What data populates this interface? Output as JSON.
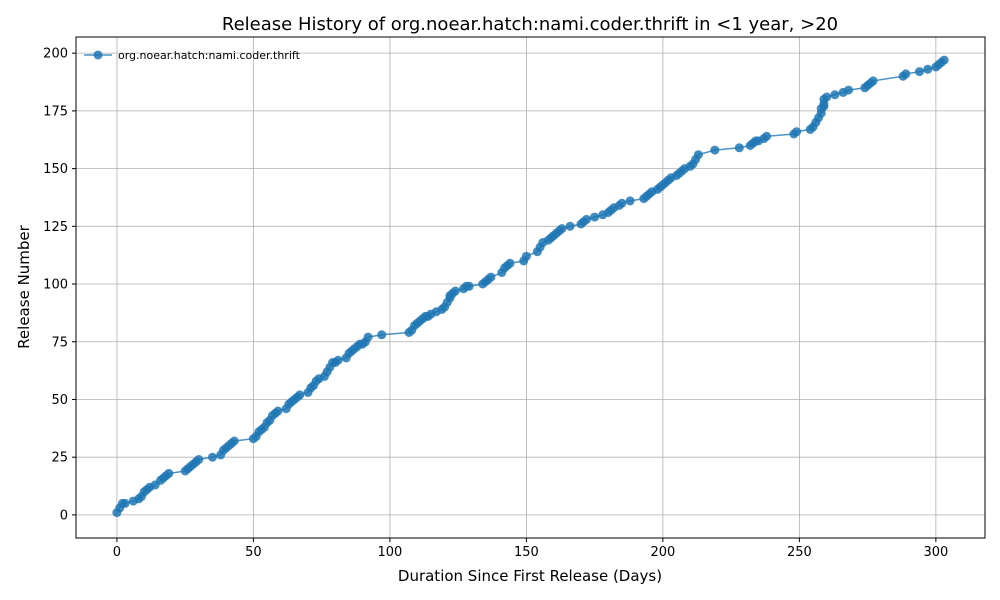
{
  "chart_data": {
    "type": "line",
    "title": "Release History of org.noear.hatch:nami.coder.thrift in <1 year, >20",
    "xlabel": "Duration Since First Release (Days)",
    "ylabel": "Release Number",
    "xlim": [
      -15,
      318
    ],
    "ylim": [
      -10,
      207
    ],
    "xticks": [
      0,
      50,
      100,
      150,
      200,
      250,
      300
    ],
    "yticks": [
      0,
      25,
      50,
      75,
      100,
      125,
      150,
      175,
      200
    ],
    "grid": true,
    "legend": "top-left",
    "series": [
      {
        "name": "org.noear.hatch:nami.coder.thrift",
        "color": "#1f77b4",
        "marker": "circle",
        "x": [
          0,
          1,
          2,
          3,
          6,
          8,
          9,
          10,
          11,
          12,
          14,
          16,
          17,
          18,
          19,
          25,
          26,
          27,
          28,
          29,
          30,
          35,
          38,
          39,
          40,
          41,
          42,
          43,
          50,
          51,
          52,
          53,
          54,
          55,
          56,
          57,
          58,
          59,
          62,
          63,
          64,
          65,
          66,
          67,
          70,
          71,
          72,
          73,
          74,
          76,
          77,
          78,
          79,
          80,
          81,
          84,
          85,
          86,
          87,
          88,
          89,
          90,
          91,
          92,
          97,
          107,
          108,
          109,
          110,
          111,
          112,
          113,
          114,
          115,
          117,
          119,
          120,
          121,
          122,
          122,
          123,
          124,
          127,
          128,
          129,
          134,
          135,
          136,
          137,
          141,
          142,
          143,
          144,
          149,
          150,
          154,
          155,
          156,
          158,
          159,
          160,
          161,
          162,
          163,
          166,
          170,
          171,
          172,
          175,
          178,
          180,
          181,
          182,
          184,
          185,
          188,
          193,
          194,
          195,
          196,
          198,
          199,
          200,
          201,
          202,
          203,
          205,
          206,
          207,
          208,
          210,
          211,
          212,
          213,
          219,
          228,
          232,
          233,
          234,
          235,
          237,
          238,
          248,
          249,
          254,
          255,
          256,
          257,
          258,
          258,
          259,
          259,
          259,
          260,
          263,
          266,
          268,
          274,
          275,
          276,
          277,
          288,
          289,
          294,
          297,
          300,
          301,
          302,
          303
        ],
        "y": [
          1,
          3,
          5,
          5,
          6,
          7,
          8,
          10,
          11,
          12,
          13,
          15,
          16,
          17,
          18,
          19,
          20,
          21,
          22,
          23,
          24,
          25,
          26,
          28,
          29,
          30,
          31,
          32,
          33,
          34,
          36,
          37,
          38,
          40,
          41,
          43,
          44,
          45,
          46,
          48,
          49,
          50,
          51,
          52,
          53,
          55,
          56,
          58,
          59,
          60,
          62,
          64,
          66,
          66,
          67,
          68,
          70,
          71,
          72,
          73,
          74,
          74,
          75,
          77,
          78,
          79,
          80,
          82,
          83,
          84,
          85,
          86,
          86,
          87,
          88,
          89,
          90,
          92,
          94,
          95,
          96,
          97,
          98,
          99,
          99,
          100,
          101,
          102,
          103,
          105,
          107,
          108,
          109,
          110,
          112,
          114,
          116,
          118,
          119,
          120,
          121,
          122,
          123,
          124,
          125,
          126,
          127,
          128,
          129,
          130,
          131,
          132,
          133,
          134,
          135,
          136,
          137,
          138,
          139,
          140,
          141,
          142,
          143,
          144,
          145,
          146,
          147,
          148,
          149,
          150,
          151,
          152,
          154,
          156,
          158,
          159,
          160,
          161,
          162,
          162,
          163,
          164,
          165,
          166,
          167,
          168,
          170,
          172,
          174,
          176,
          177,
          178,
          180,
          181,
          182,
          183,
          184,
          185,
          186,
          187,
          188,
          190,
          191,
          192,
          193,
          194,
          195,
          196,
          197
        ]
      }
    ]
  }
}
